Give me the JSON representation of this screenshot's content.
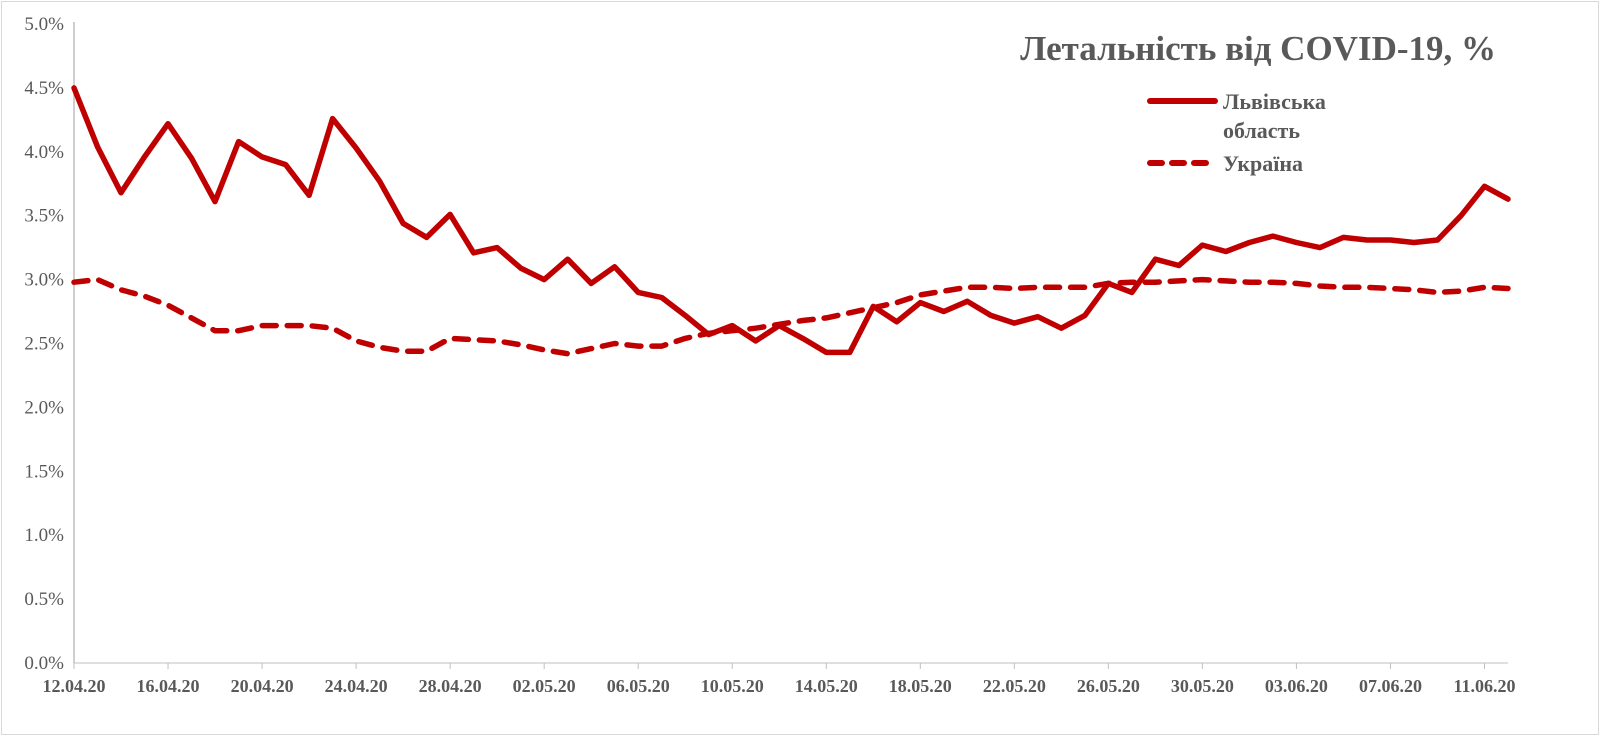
{
  "chart_data": {
    "type": "line",
    "title": "Летальність від COVID-19, %",
    "xlabel": "",
    "ylabel": "",
    "ylim": [
      0,
      5.0
    ],
    "yticks": [
      "0.0%",
      "0.5%",
      "1.0%",
      "1.5%",
      "2.0%",
      "2.5%",
      "3.0%",
      "3.5%",
      "4.0%",
      "4.5%",
      "5.0%"
    ],
    "xtick_labels": [
      "12.04.20",
      "16.04.20",
      "20.04.20",
      "24.04.20",
      "28.04.20",
      "02.05.20",
      "06.05.20",
      "10.05.20",
      "14.05.20",
      "18.05.20",
      "22.05.20",
      "26.05.20",
      "30.05.20",
      "03.06.20",
      "07.06.20",
      "11.06.20"
    ],
    "xtick_step_days": 4,
    "grid": false,
    "legend_position": "top-right",
    "colors": {
      "series": "#C00000",
      "text": "#595959"
    },
    "series": [
      {
        "name": "Львівська область",
        "legend_lines": [
          "Львівська",
          "область"
        ],
        "style": "solid",
        "values": [
          4.5,
          4.04,
          3.68,
          3.96,
          4.22,
          3.95,
          3.61,
          4.08,
          3.96,
          3.9,
          3.66,
          4.26,
          4.03,
          3.77,
          3.44,
          3.33,
          3.51,
          3.21,
          3.25,
          3.09,
          3.0,
          3.16,
          2.97,
          3.1,
          2.9,
          2.86,
          2.72,
          2.57,
          2.64,
          2.52,
          2.64,
          2.54,
          2.43,
          2.43,
          2.79,
          2.67,
          2.82,
          2.75,
          2.83,
          2.72,
          2.66,
          2.71,
          2.62,
          2.72,
          2.97,
          2.9,
          3.16,
          3.11,
          3.27,
          3.22,
          3.29,
          3.34,
          3.29,
          3.25,
          3.33,
          3.31,
          3.31,
          3.29,
          3.31,
          3.5,
          3.73,
          3.63
        ]
      },
      {
        "name": "Україна",
        "legend_lines": [
          "Україна"
        ],
        "style": "dashed",
        "values": [
          2.98,
          3.0,
          2.92,
          2.87,
          2.8,
          2.7,
          2.6,
          2.6,
          2.64,
          2.64,
          2.64,
          2.62,
          2.52,
          2.47,
          2.44,
          2.44,
          2.54,
          2.53,
          2.52,
          2.49,
          2.45,
          2.42,
          2.46,
          2.5,
          2.48,
          2.48,
          2.54,
          2.58,
          2.6,
          2.62,
          2.65,
          2.68,
          2.7,
          2.74,
          2.78,
          2.82,
          2.88,
          2.91,
          2.94,
          2.94,
          2.93,
          2.94,
          2.94,
          2.94,
          2.97,
          2.98,
          2.98,
          2.99,
          3.0,
          2.99,
          2.98,
          2.98,
          2.97,
          2.95,
          2.94,
          2.94,
          2.93,
          2.92,
          2.9,
          2.91,
          2.94,
          2.93
        ]
      }
    ]
  }
}
